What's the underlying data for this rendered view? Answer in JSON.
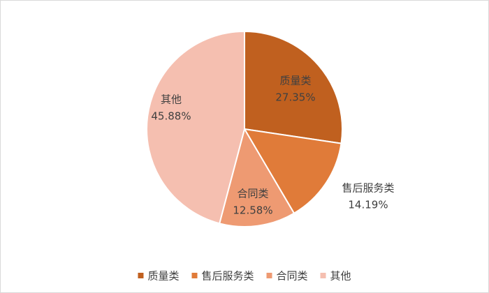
{
  "chart_data": {
    "type": "pie",
    "categories": [
      "质量类",
      "售后服务类",
      "合同类",
      "其他"
    ],
    "values": [
      27.35,
      14.19,
      12.58,
      45.88
    ],
    "value_labels": [
      "27.35%",
      "14.19%",
      "12.58%",
      "45.88%"
    ],
    "colors": [
      "#C0601F",
      "#E07B39",
      "#EE9A72",
      "#F5BFB0"
    ],
    "legend": "bottom"
  }
}
